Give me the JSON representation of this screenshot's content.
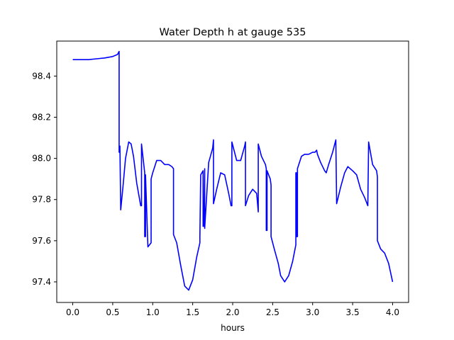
{
  "chart_data": {
    "type": "line",
    "title": "Water Depth h at gauge 535",
    "xlabel": "hours",
    "ylabel": "",
    "xlim": [
      -0.2,
      4.2
    ],
    "ylim": [
      97.3,
      98.57
    ],
    "xticks": [
      0.0,
      0.5,
      1.0,
      1.5,
      2.0,
      2.5,
      3.0,
      3.5,
      4.0
    ],
    "xtick_labels": [
      "0.0",
      "0.5",
      "1.0",
      "1.5",
      "2.0",
      "2.5",
      "3.0",
      "3.5",
      "4.0"
    ],
    "yticks": [
      97.4,
      97.6,
      97.8,
      98.0,
      98.2,
      98.4
    ],
    "ytick_labels": [
      "97.4",
      "97.6",
      "97.8",
      "98.0",
      "98.2",
      "98.4"
    ],
    "grid": false,
    "legend": "none",
    "series": [
      {
        "color": "#0000ff",
        "x": [
          0.0,
          0.1,
          0.2,
          0.3,
          0.4,
          0.5,
          0.56,
          0.58,
          0.58,
          0.59,
          0.59,
          0.6,
          0.63,
          0.66,
          0.7,
          0.73,
          0.76,
          0.8,
          0.85,
          0.86,
          0.86,
          0.9,
          0.9,
          0.91,
          0.91,
          0.94,
          0.98,
          0.98,
          1.0,
          1.05,
          1.1,
          1.15,
          1.2,
          1.24,
          1.26,
          1.26,
          1.3,
          1.35,
          1.4,
          1.45,
          1.5,
          1.55,
          1.59,
          1.59,
          1.6,
          1.63,
          1.63,
          1.64,
          1.65,
          1.65,
          1.7,
          1.75,
          1.76,
          1.76,
          1.8,
          1.85,
          1.9,
          1.95,
          1.98,
          1.99,
          1.99,
          2.05,
          2.1,
          2.15,
          2.16,
          2.16,
          2.2,
          2.25,
          2.3,
          2.32,
          2.32,
          2.36,
          2.41,
          2.42,
          2.42,
          2.43,
          2.43,
          2.47,
          2.48,
          2.48,
          2.52,
          2.57,
          2.6,
          2.65,
          2.7,
          2.75,
          2.78,
          2.79,
          2.79,
          2.8,
          2.8,
          2.81,
          2.81,
          2.86,
          2.9,
          2.95,
          3.0,
          3.03,
          3.05,
          3.06,
          3.1,
          3.15,
          3.17,
          3.2,
          3.25,
          3.29,
          3.3,
          3.3,
          3.35,
          3.4,
          3.44,
          3.5,
          3.55,
          3.6,
          3.65,
          3.69,
          3.7,
          3.7,
          3.75,
          3.8,
          3.81,
          3.81,
          3.85,
          3.9,
          3.95,
          4.0
        ],
        "y": [
          98.48,
          98.48,
          98.48,
          98.484,
          98.488,
          98.495,
          98.505,
          98.52,
          98.03,
          98.03,
          98.06,
          97.75,
          97.87,
          98.0,
          98.08,
          98.07,
          98.01,
          97.88,
          97.77,
          97.77,
          98.07,
          97.93,
          97.62,
          97.62,
          97.92,
          97.57,
          97.59,
          97.9,
          97.93,
          97.99,
          97.99,
          97.97,
          97.97,
          97.96,
          97.95,
          97.63,
          97.59,
          97.48,
          97.38,
          97.36,
          97.41,
          97.52,
          97.59,
          97.62,
          97.92,
          97.94,
          97.67,
          97.67,
          97.95,
          97.66,
          97.98,
          98.05,
          98.09,
          97.78,
          97.85,
          97.93,
          97.92,
          97.83,
          97.77,
          97.77,
          98.08,
          97.99,
          97.99,
          98.06,
          98.08,
          97.77,
          97.82,
          97.85,
          97.83,
          97.74,
          98.07,
          98.01,
          97.97,
          97.95,
          97.65,
          97.65,
          97.94,
          97.9,
          97.87,
          97.62,
          97.56,
          97.49,
          97.43,
          97.4,
          97.43,
          97.5,
          97.56,
          97.58,
          97.93,
          97.93,
          97.62,
          97.62,
          97.95,
          98.01,
          98.02,
          98.02,
          98.03,
          98.03,
          98.04,
          98.02,
          97.98,
          97.94,
          97.93,
          97.97,
          98.03,
          98.09,
          97.78,
          97.78,
          97.86,
          97.93,
          97.96,
          97.94,
          97.92,
          97.85,
          97.81,
          97.77,
          98.08,
          98.08,
          97.97,
          97.94,
          97.91,
          97.6,
          97.56,
          97.54,
          97.49,
          97.4
        ]
      }
    ]
  }
}
